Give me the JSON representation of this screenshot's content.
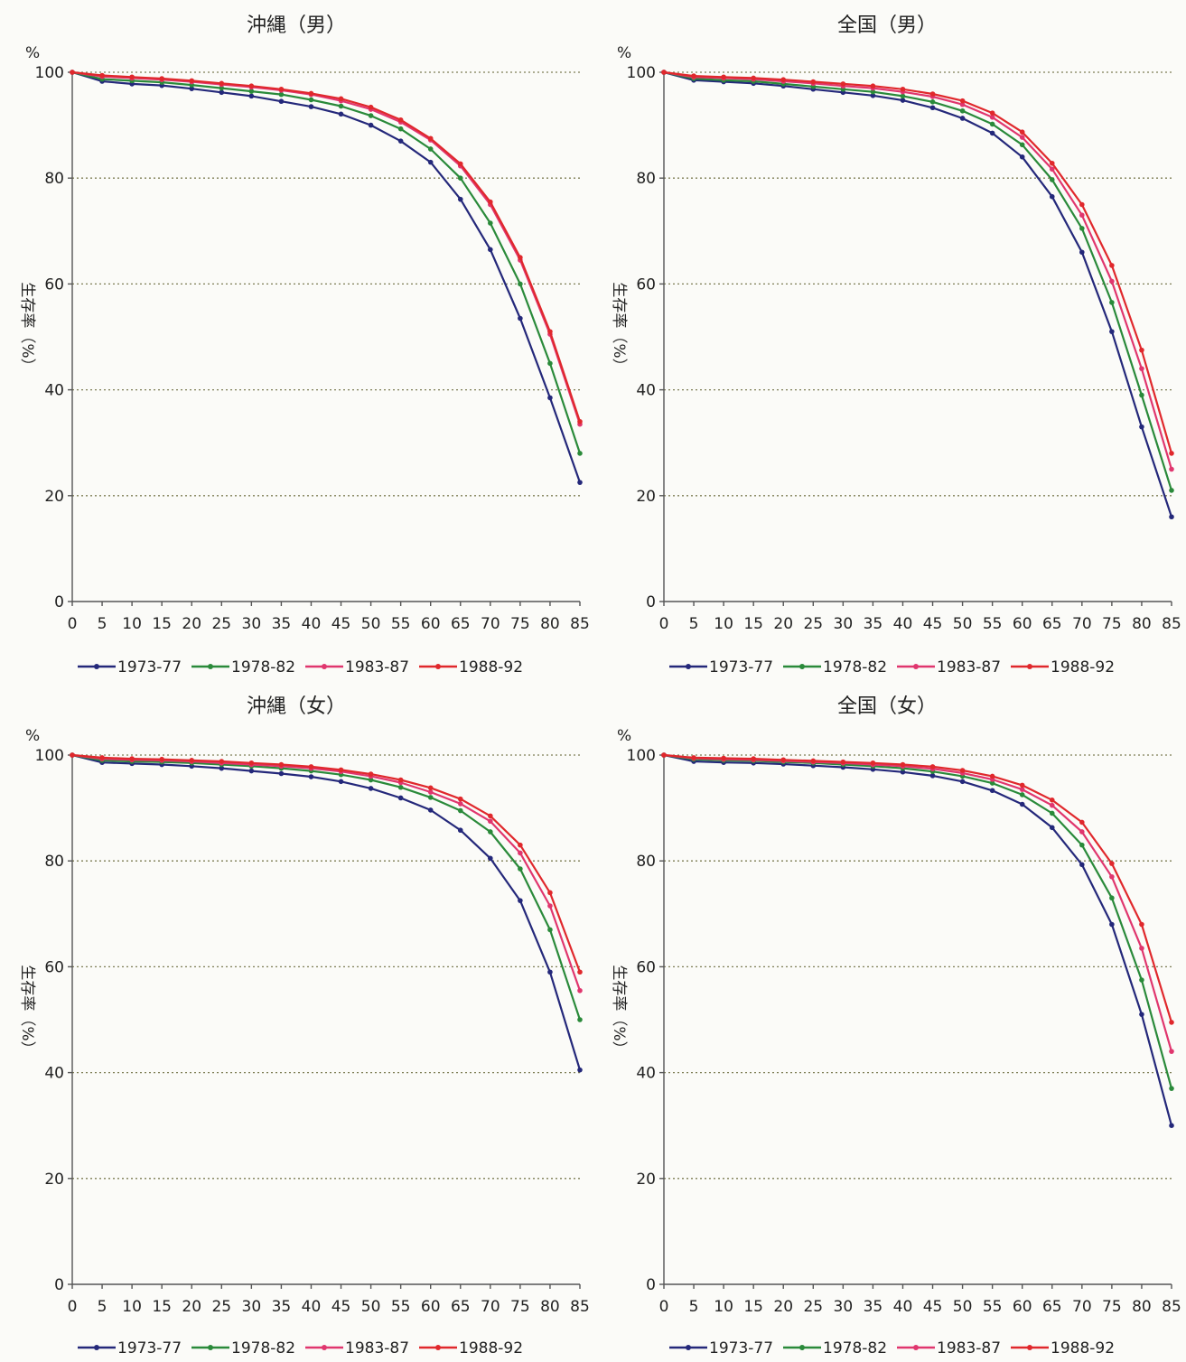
{
  "colors": {
    "1973-77": "#24287a",
    "1978-82": "#2a8a3a",
    "1983-87": "#e0366e",
    "1988-92": "#e0282c"
  },
  "chart_data": [
    {
      "type": "line",
      "title": "沖縄（男）",
      "ylabel": "生存率（%）",
      "yunit": "%",
      "ylim": [
        0,
        100
      ],
      "yticks": [
        0,
        20,
        40,
        60,
        80,
        100
      ],
      "x": [
        0,
        5,
        10,
        15,
        20,
        25,
        30,
        35,
        40,
        45,
        50,
        55,
        60,
        65,
        70,
        75,
        80,
        85
      ],
      "grid": true,
      "legend": "bottom",
      "series": [
        {
          "name": "1973-77",
          "values": [
            100,
            98.3,
            97.8,
            97.5,
            96.9,
            96.2,
            95.5,
            94.5,
            93.5,
            92.1,
            90.0,
            87.0,
            83.0,
            76.0,
            66.5,
            53.5,
            38.5,
            22.5
          ]
        },
        {
          "name": "1978-82",
          "values": [
            100,
            98.7,
            98.4,
            98.1,
            97.6,
            97.0,
            96.4,
            95.8,
            94.8,
            93.6,
            91.8,
            89.3,
            85.5,
            80.0,
            71.5,
            60.0,
            45.0,
            28.0
          ]
        },
        {
          "name": "1983-87",
          "values": [
            100,
            99.2,
            98.9,
            98.6,
            98.2,
            97.7,
            97.2,
            96.6,
            95.8,
            94.6,
            93.0,
            90.6,
            87.2,
            82.3,
            75.0,
            64.5,
            50.5,
            33.5
          ]
        },
        {
          "name": "1988-92",
          "values": [
            100,
            99.4,
            99.1,
            98.8,
            98.4,
            97.9,
            97.4,
            96.8,
            96.0,
            95.0,
            93.4,
            91.0,
            87.5,
            82.7,
            75.5,
            65.0,
            51.0,
            34.0
          ]
        }
      ]
    },
    {
      "type": "line",
      "title": "全国（男）",
      "ylabel": "生存率（%）",
      "yunit": "%",
      "ylim": [
        0,
        100
      ],
      "yticks": [
        0,
        20,
        40,
        60,
        80,
        100
      ],
      "x": [
        0,
        5,
        10,
        15,
        20,
        25,
        30,
        35,
        40,
        45,
        50,
        55,
        60,
        65,
        70,
        75,
        80,
        85
      ],
      "grid": true,
      "legend": "bottom",
      "series": [
        {
          "name": "1973-77",
          "values": [
            100,
            98.5,
            98.2,
            97.9,
            97.4,
            96.8,
            96.2,
            95.6,
            94.7,
            93.3,
            91.3,
            88.5,
            84.0,
            76.5,
            66.0,
            51.0,
            33.0,
            16.0
          ]
        },
        {
          "name": "1978-82",
          "values": [
            100,
            98.8,
            98.5,
            98.3,
            97.8,
            97.3,
            96.8,
            96.3,
            95.5,
            94.4,
            92.7,
            90.2,
            86.3,
            79.7,
            70.5,
            56.5,
            39.0,
            21.0
          ]
        },
        {
          "name": "1983-87",
          "values": [
            100,
            99.1,
            98.9,
            98.7,
            98.3,
            97.9,
            97.4,
            97.0,
            96.3,
            95.4,
            93.9,
            91.5,
            87.7,
            81.7,
            73.0,
            60.5,
            44.0,
            25.0
          ]
        },
        {
          "name": "1988-92",
          "values": [
            100,
            99.3,
            99.1,
            98.9,
            98.6,
            98.2,
            97.8,
            97.4,
            96.8,
            95.9,
            94.6,
            92.3,
            88.7,
            82.8,
            75.0,
            63.5,
            47.5,
            28.0
          ]
        }
      ]
    },
    {
      "type": "line",
      "title": "沖縄（女）",
      "ylabel": "生存率（%）",
      "yunit": "%",
      "ylim": [
        0,
        100
      ],
      "yticks": [
        0,
        20,
        40,
        60,
        80,
        100
      ],
      "x": [
        0,
        5,
        10,
        15,
        20,
        25,
        30,
        35,
        40,
        45,
        50,
        55,
        60,
        65,
        70,
        75,
        80,
        85
      ],
      "grid": true,
      "legend": "bottom",
      "series": [
        {
          "name": "1973-77",
          "values": [
            100,
            98.6,
            98.4,
            98.2,
            97.9,
            97.5,
            97.0,
            96.5,
            95.9,
            95.0,
            93.7,
            91.9,
            89.6,
            85.8,
            80.5,
            72.5,
            59.0,
            40.5
          ]
        },
        {
          "name": "1978-82",
          "values": [
            100,
            99.0,
            98.8,
            98.7,
            98.5,
            98.2,
            97.9,
            97.5,
            97.0,
            96.3,
            95.3,
            93.9,
            92.0,
            89.5,
            85.5,
            78.5,
            67.0,
            50.0
          ]
        },
        {
          "name": "1983-87",
          "values": [
            100,
            99.3,
            99.1,
            99.0,
            98.8,
            98.5,
            98.2,
            97.9,
            97.5,
            96.9,
            96.0,
            94.8,
            93.0,
            90.8,
            87.5,
            81.5,
            71.5,
            55.5
          ]
        },
        {
          "name": "1988-92",
          "values": [
            100,
            99.5,
            99.3,
            99.2,
            99.0,
            98.8,
            98.5,
            98.2,
            97.8,
            97.2,
            96.4,
            95.3,
            93.8,
            91.7,
            88.5,
            83.0,
            74.0,
            59.0
          ]
        }
      ]
    },
    {
      "type": "line",
      "title": "全国（女）",
      "ylabel": "生存率（%）",
      "yunit": "%",
      "ylim": [
        0,
        100
      ],
      "yticks": [
        0,
        20,
        40,
        60,
        80,
        100
      ],
      "x": [
        0,
        5,
        10,
        15,
        20,
        25,
        30,
        35,
        40,
        45,
        50,
        55,
        60,
        65,
        70,
        75,
        80,
        85
      ],
      "grid": true,
      "legend": "bottom",
      "series": [
        {
          "name": "1973-77",
          "values": [
            100,
            98.8,
            98.6,
            98.5,
            98.3,
            98.0,
            97.7,
            97.3,
            96.8,
            96.1,
            95.0,
            93.3,
            90.7,
            86.3,
            79.3,
            68.0,
            51.0,
            30.0
          ]
        },
        {
          "name": "1978-82",
          "values": [
            100,
            99.2,
            99.0,
            98.9,
            98.7,
            98.5,
            98.2,
            97.9,
            97.5,
            96.9,
            96.0,
            94.7,
            92.5,
            89.0,
            83.0,
            73.0,
            57.5,
            37.0
          ]
        },
        {
          "name": "1983-87",
          "values": [
            100,
            99.4,
            99.2,
            99.1,
            98.9,
            98.7,
            98.5,
            98.2,
            97.9,
            97.4,
            96.6,
            95.4,
            93.5,
            90.5,
            85.5,
            77.0,
            63.5,
            44.0
          ]
        },
        {
          "name": "1988-92",
          "values": [
            100,
            99.5,
            99.4,
            99.3,
            99.1,
            98.9,
            98.7,
            98.5,
            98.2,
            97.8,
            97.1,
            96.0,
            94.3,
            91.5,
            87.3,
            79.5,
            68.0,
            49.5
          ]
        }
      ]
    }
  ]
}
